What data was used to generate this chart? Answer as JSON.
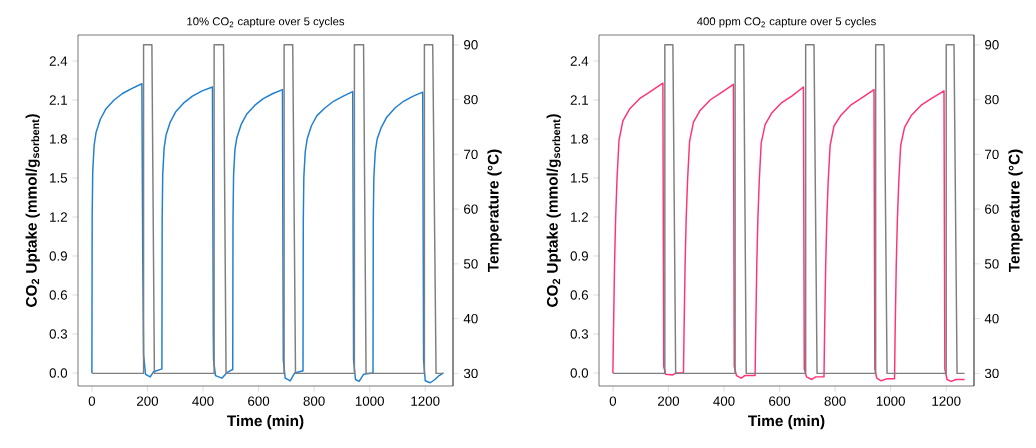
{
  "chart_data": [
    {
      "type": "line",
      "title": "10% CO$_{2}$ capture over 5 cycles",
      "xlabel": "Time (min)",
      "ylabel": "CO$_{2}$ Uptake (mmol/g$_{sorbent}$)",
      "y2label": "Temperature (°C)",
      "xlim": [
        -50,
        1300
      ],
      "xticks": [
        0,
        200,
        400,
        600,
        800,
        1000,
        1200
      ],
      "ylim": [
        -0.1,
        2.6
      ],
      "yticks": [
        {
          "value": 0,
          "label": "0.0"
        },
        0.3,
        0.6,
        0.9,
        1.2,
        1.5,
        1.8,
        2.1,
        2.4
      ],
      "y2lim": [
        27.7,
        91.8
      ],
      "y2ticks": [
        30,
        40,
        50,
        60,
        70,
        80,
        90
      ],
      "series": [
        {
          "color": "#1f7fd0",
          "x": [
            0,
            1,
            3,
            8,
            15,
            30,
            50,
            80,
            110,
            145,
            180,
            183,
            186,
            193,
            210,
            222,
            250,
            252,
            253,
            255,
            260,
            267,
            282,
            302,
            332,
            362,
            397,
            434,
            437,
            438,
            445,
            468,
            485,
            505,
            507,
            508,
            510,
            515,
            522,
            537,
            557,
            587,
            617,
            652,
            686,
            689,
            696,
            714,
            730,
            757,
            760,
            761,
            763,
            768,
            775,
            790,
            810,
            840,
            870,
            905,
            939,
            942,
            949,
            962,
            978,
            1010,
            1012,
            1013,
            1015,
            1020,
            1027,
            1042,
            1062,
            1092,
            1122,
            1157,
            1191,
            1194,
            1200,
            1218,
            1235,
            1250,
            1266
          ],
          "values": [
            0,
            1.2,
            1.55,
            1.75,
            1.85,
            1.95,
            2.03,
            2.1,
            2.15,
            2.19,
            2.225,
            0.9,
            0.14,
            -0.01,
            -0.03,
            0.01,
            0.03,
            0.03,
            1.19,
            1.53,
            1.73,
            1.83,
            1.93,
            2.01,
            2.08,
            2.13,
            2.17,
            2.2,
            0.3,
            0.1,
            -0.02,
            -0.04,
            0.0,
            0.025,
            0.025,
            1.18,
            1.52,
            1.72,
            1.81,
            1.91,
            1.99,
            2.06,
            2.11,
            2.15,
            2.18,
            0.1,
            -0.04,
            -0.06,
            0.0,
            0.015,
            0.015,
            1.17,
            1.51,
            1.7,
            1.8,
            1.9,
            1.98,
            2.04,
            2.09,
            2.13,
            2.165,
            0.1,
            -0.05,
            -0.065,
            -0.01,
            0.0,
            0.0,
            1.17,
            1.5,
            1.7,
            1.8,
            1.89,
            1.97,
            2.04,
            2.09,
            2.13,
            2.16,
            0.1,
            -0.06,
            -0.075,
            -0.05,
            -0.02,
            0.0
          ]
        },
        {
          "color": "#7f7f7f",
          "axis": "y2",
          "x": [
            0,
            186,
            186,
            216,
            225,
            440,
            440,
            474,
            483,
            692,
            692,
            723,
            733,
            945,
            945,
            978,
            987,
            1197,
            1197,
            1227,
            1239,
            1263
          ],
          "values": [
            30,
            30,
            90,
            90,
            30,
            30,
            90,
            90,
            30,
            30,
            90,
            90,
            30,
            30,
            90,
            90,
            30,
            30,
            90,
            90,
            30,
            30
          ]
        }
      ]
    },
    {
      "type": "line",
      "title": "400 ppm CO$_{2}$ capture over 5 cycles",
      "xlabel": "Time (min)",
      "ylabel": "CO$_{2}$ Uptake (mmol/g$_{sorbent}$)",
      "y2label": "Temperature (°C)",
      "xlim": [
        -50,
        1300
      ],
      "xticks": [
        0,
        200,
        400,
        600,
        800,
        1000,
        1200
      ],
      "ylim": [
        -0.1,
        2.6
      ],
      "yticks": [
        {
          "value": 0,
          "label": "0.0"
        },
        0.3,
        0.6,
        0.9,
        1.2,
        1.5,
        1.8,
        2.1,
        2.4
      ],
      "y2lim": [
        27.7,
        91.8
      ],
      "y2ticks": [
        30,
        40,
        50,
        60,
        70,
        80,
        90
      ],
      "series": [
        {
          "color": "#ff3377",
          "x": [
            0,
            2,
            6,
            10,
            15,
            22,
            36,
            60,
            96,
            132,
            180,
            183,
            190,
            215,
            228,
            254,
            256,
            260,
            264,
            269,
            276,
            290,
            314,
            350,
            386,
            434,
            437,
            445,
            462,
            475,
            510,
            512,
            514,
            518,
            522,
            527,
            534,
            548,
            572,
            608,
            644,
            686,
            689,
            697,
            716,
            730,
            758,
            760,
            762,
            766,
            770,
            775,
            782,
            796,
            820,
            856,
            892,
            940,
            943,
            950,
            966,
            985,
            1012,
            1014,
            1016,
            1020,
            1024,
            1029,
            1036,
            1050,
            1074,
            1110,
            1146,
            1192,
            1195,
            1203,
            1218,
            1235,
            1266
          ],
          "values": [
            0,
            0.3,
            0.84,
            1.2,
            1.5,
            1.79,
            1.94,
            2.03,
            2.11,
            2.16,
            2.23,
            0.05,
            -0.01,
            -0.015,
            0.0,
            0.0,
            0.3,
            0.84,
            1.2,
            1.49,
            1.78,
            1.93,
            2.02,
            2.1,
            2.15,
            2.22,
            0.05,
            -0.02,
            -0.04,
            -0.02,
            -0.02,
            -0.02,
            0.3,
            0.83,
            1.19,
            1.48,
            1.77,
            1.91,
            2.0,
            2.08,
            2.13,
            2.2,
            0.03,
            -0.03,
            -0.05,
            -0.03,
            -0.03,
            -0.03,
            0.3,
            0.82,
            1.18,
            1.47,
            1.75,
            1.9,
            1.98,
            2.06,
            2.11,
            2.18,
            0.03,
            -0.04,
            -0.06,
            -0.045,
            -0.045,
            -0.045,
            0.3,
            0.82,
            1.17,
            1.46,
            1.75,
            1.89,
            1.98,
            2.06,
            2.11,
            2.17,
            0.03,
            -0.05,
            -0.065,
            -0.05,
            -0.05
          ]
        },
        {
          "color": "#7f7f7f",
          "axis": "y2",
          "x": [
            0,
            187,
            187,
            216,
            226,
            440,
            440,
            471,
            480,
            694,
            694,
            724,
            735,
            946,
            946,
            976,
            987,
            1200,
            1200,
            1228,
            1239,
            1266
          ],
          "values": [
            30,
            30,
            90,
            90,
            30,
            30,
            90,
            90,
            30,
            30,
            90,
            90,
            30,
            30,
            90,
            90,
            30,
            30,
            90,
            90,
            30,
            30
          ]
        }
      ]
    }
  ]
}
